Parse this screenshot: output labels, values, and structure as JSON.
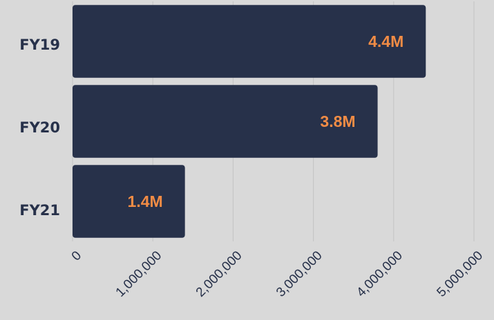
{
  "chart_data": {
    "type": "bar",
    "orientation": "horizontal",
    "categories": [
      "FY19",
      "FY20",
      "FY21"
    ],
    "values": [
      4400000,
      3800000,
      1400000
    ],
    "value_labels": [
      "4.4M",
      "3.8M",
      "1.4M"
    ],
    "color": "#27314a",
    "label_color": "#f28c45",
    "xlim": [
      0,
      5000000
    ],
    "xticks": [
      0,
      {
        "value": 1000000,
        "label": "1,000,000"
      },
      {
        "value": 2000000,
        "label": "2,000,000"
      },
      {
        "value": 3000000,
        "label": "3,000,000"
      },
      {
        "value": 4000000,
        "label": "4,000,000"
      },
      {
        "value": 5000000,
        "label": "5,000,000"
      }
    ],
    "grid": true
  }
}
